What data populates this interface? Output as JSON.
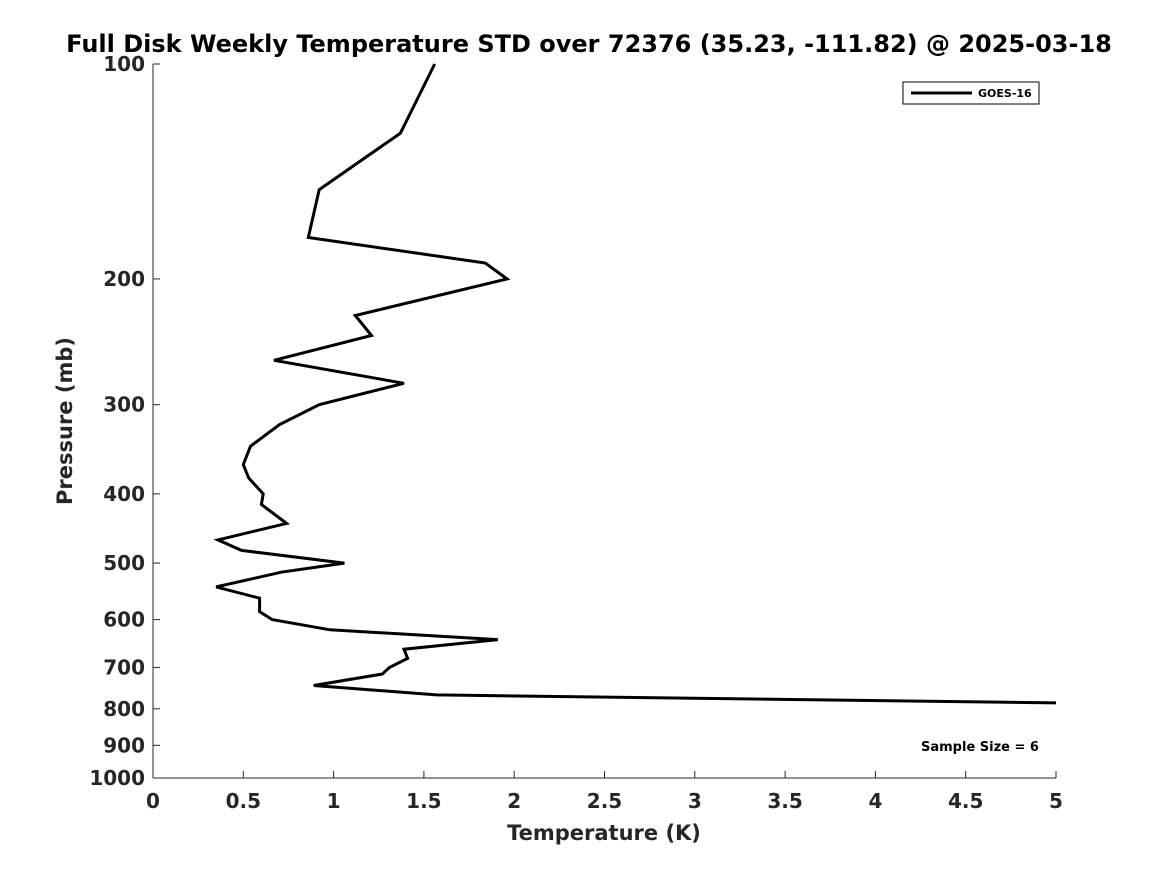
{
  "chart_data": {
    "type": "line",
    "title": "Full Disk Weekly Temperature STD over 72376 (35.23, -111.82) @ 2025-03-18",
    "xlabel": "Temperature (K)",
    "ylabel": "Pressure (mb)",
    "xlim": [
      0,
      5
    ],
    "ylim": [
      100,
      1000
    ],
    "y_scale": "log",
    "y_reversed": true,
    "grid": false,
    "legend_position": "top-right",
    "x_ticks": [
      0,
      0.5,
      1,
      1.5,
      2,
      2.5,
      3,
      3.5,
      4,
      4.5,
      5
    ],
    "x_tick_labels": [
      "0",
      "0.5",
      "1",
      "1.5",
      "2",
      "2.5",
      "3",
      "3.5",
      "4",
      "4.5",
      "5"
    ],
    "y_ticks": [
      100,
      200,
      300,
      400,
      500,
      600,
      700,
      800,
      900,
      1000
    ],
    "y_tick_labels": [
      "100",
      "200",
      "300",
      "400",
      "500",
      "600",
      "700",
      "800",
      "900",
      "1000"
    ],
    "series": [
      {
        "name": "GOES-16",
        "color": "#000000",
        "points": [
          {
            "x": 1.56,
            "y": 100
          },
          {
            "x": 1.37,
            "y": 125
          },
          {
            "x": 0.92,
            "y": 150
          },
          {
            "x": 0.86,
            "y": 175
          },
          {
            "x": 1.84,
            "y": 190
          },
          {
            "x": 1.96,
            "y": 200
          },
          {
            "x": 1.12,
            "y": 225
          },
          {
            "x": 1.21,
            "y": 240
          },
          {
            "x": 0.67,
            "y": 260
          },
          {
            "x": 1.39,
            "y": 280
          },
          {
            "x": 0.92,
            "y": 300
          },
          {
            "x": 0.7,
            "y": 320
          },
          {
            "x": 0.54,
            "y": 343
          },
          {
            "x": 0.5,
            "y": 364
          },
          {
            "x": 0.53,
            "y": 380
          },
          {
            "x": 0.61,
            "y": 400
          },
          {
            "x": 0.6,
            "y": 414
          },
          {
            "x": 0.74,
            "y": 440
          },
          {
            "x": 0.36,
            "y": 464
          },
          {
            "x": 0.49,
            "y": 480
          },
          {
            "x": 1.06,
            "y": 500
          },
          {
            "x": 0.71,
            "y": 515
          },
          {
            "x": 0.35,
            "y": 540
          },
          {
            "x": 0.59,
            "y": 560
          },
          {
            "x": 0.59,
            "y": 585
          },
          {
            "x": 0.66,
            "y": 600
          },
          {
            "x": 0.98,
            "y": 620
          },
          {
            "x": 1.91,
            "y": 640
          },
          {
            "x": 1.39,
            "y": 660
          },
          {
            "x": 1.41,
            "y": 680
          },
          {
            "x": 1.31,
            "y": 700
          },
          {
            "x": 1.27,
            "y": 715
          },
          {
            "x": 0.89,
            "y": 742
          },
          {
            "x": 1.57,
            "y": 765
          },
          {
            "x": 5.0,
            "y": 785
          }
        ]
      }
    ],
    "annotations": [
      "Sample Size = 6"
    ]
  }
}
